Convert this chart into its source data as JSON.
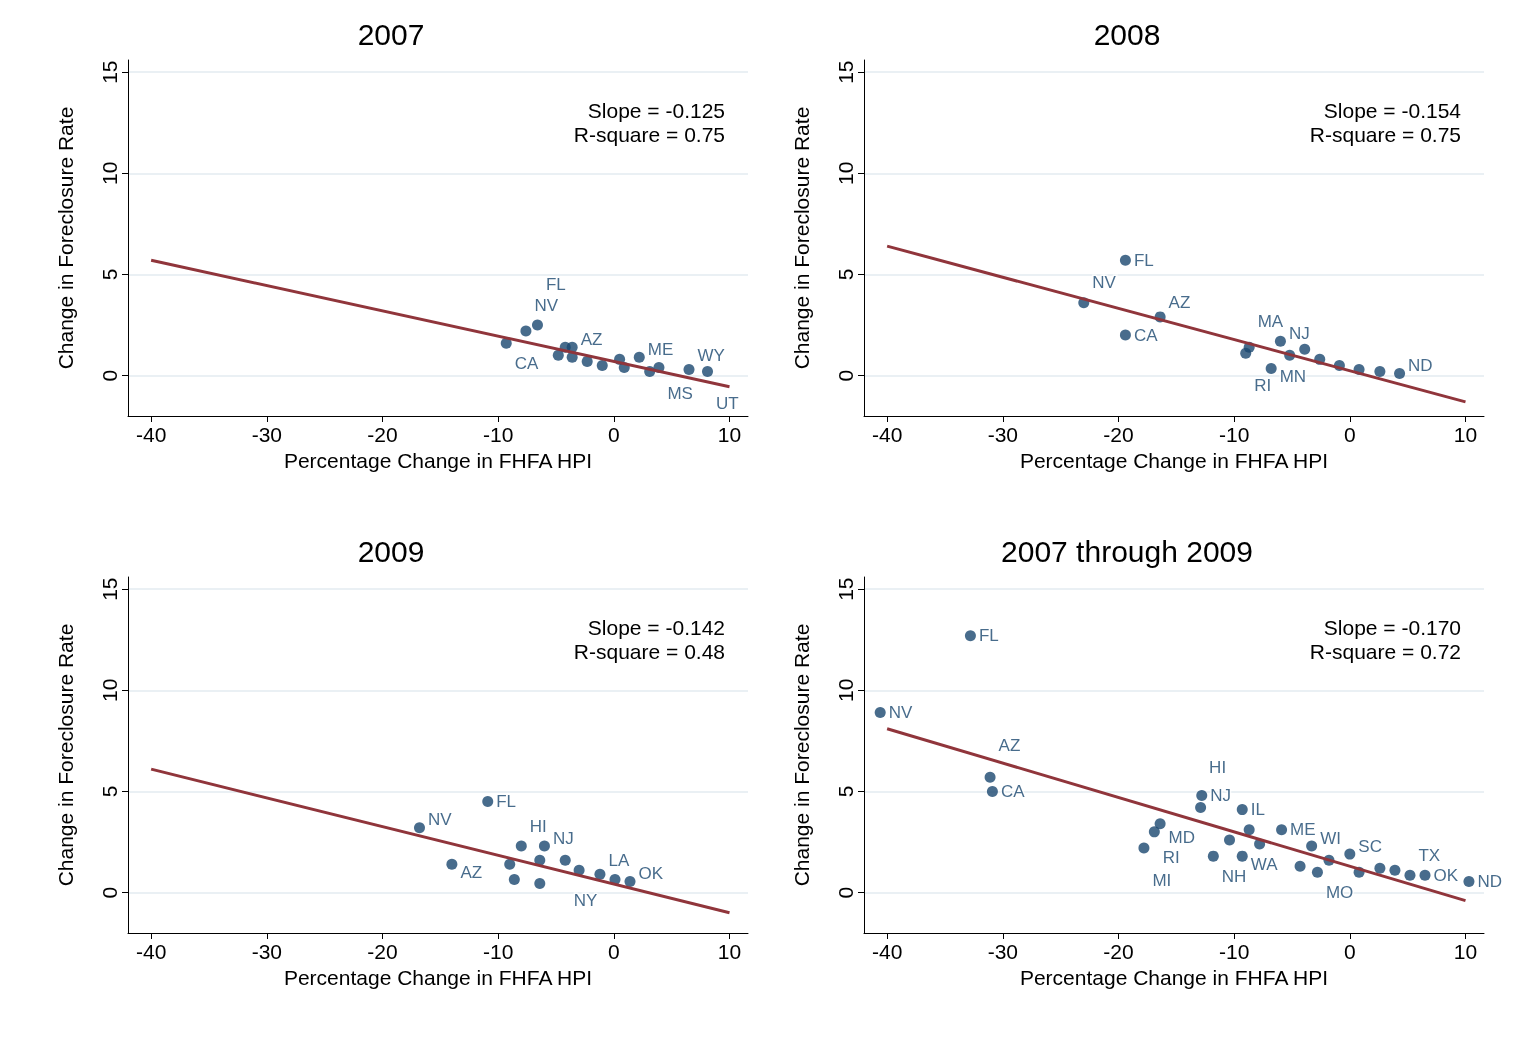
{
  "chart_data": [
    {
      "type": "scatter",
      "title": "2007",
      "xlabel": "Percentage Change in FHFA HPI",
      "ylabel": "Change in Foreclosure Rate",
      "annotations": [
        "Slope = -0.125",
        "R-square = 0.75"
      ],
      "xlim": [
        -42,
        11.6
      ],
      "ylim": [
        -2,
        15.6
      ],
      "xticks": [
        -40,
        -30,
        -20,
        -10,
        0,
        10
      ],
      "yticks": [
        0,
        5,
        10,
        15
      ],
      "grid": "y",
      "series": [
        {
          "marker": "circle",
          "color": "#1a476f",
          "x": [
            -9.3,
            -7.6,
            -6.6,
            -3.6,
            -4.2,
            -4.8,
            -3.6,
            -2.3,
            -1.0,
            0.5,
            2.2,
            0.9,
            3.1,
            3.9,
            6.5,
            8.1
          ],
          "values": [
            1.6,
            2.2,
            2.5,
            1.4,
            1.4,
            1.0,
            0.9,
            0.7,
            0.5,
            0.8,
            0.9,
            0.4,
            0.2,
            0.4,
            0.3,
            0.2
          ],
          "value_labels": [
            "CA",
            "NV",
            "FL",
            "AZ",
            null,
            null,
            null,
            null,
            null,
            null,
            "ME",
            null,
            null,
            "MS",
            "WY",
            "UT"
          ]
        },
        {
          "type": "line",
          "marker": "none",
          "color": "#90353b",
          "x": [
            -40,
            10
          ],
          "values": [
            5.7,
            -0.55
          ]
        }
      ]
    },
    {
      "type": "scatter",
      "title": "2008",
      "xlabel": "Percentage Change in FHFA HPI",
      "ylabel": "Change in Foreclosure Rate",
      "annotations": [
        "Slope = -0.154",
        "R-square = 0.75"
      ],
      "xlim": [
        -42,
        11.6
      ],
      "ylim": [
        -2,
        15.6
      ],
      "xticks": [
        -40,
        -30,
        -20,
        -10,
        0,
        10
      ],
      "yticks": [
        0,
        5,
        10,
        15
      ],
      "grid": "y",
      "series": [
        {
          "marker": "circle",
          "color": "#1a476f",
          "x": [
            -19.4,
            -23.0,
            -16.4,
            -19.4,
            -8.7,
            -9.0,
            -6.0,
            -6.8,
            -5.2,
            -3.9,
            -2.6,
            -0.9,
            0.8,
            2.6,
            4.3
          ],
          "values": [
            5.7,
            3.6,
            2.9,
            2.0,
            1.4,
            1.1,
            1.7,
            0.35,
            1.0,
            1.3,
            0.8,
            0.5,
            0.3,
            0.2,
            0.1
          ],
          "value_labels": [
            "FL",
            "NV",
            "AZ",
            "CA",
            "MA",
            "RI",
            "NJ",
            "MN",
            null,
            null,
            null,
            null,
            null,
            null,
            "ND"
          ]
        },
        {
          "type": "line",
          "marker": "none",
          "color": "#90353b",
          "x": [
            -40,
            10
          ],
          "values": [
            6.4,
            -1.3
          ]
        }
      ]
    },
    {
      "type": "scatter",
      "title": "2009",
      "xlabel": "Percentage Change in FHFA HPI",
      "ylabel": "Change in Foreclosure Rate",
      "annotations": [
        "Slope = -0.142",
        "R-square = 0.48"
      ],
      "xlim": [
        -42,
        11.6
      ],
      "ylim": [
        -2,
        15.6
      ],
      "xticks": [
        -40,
        -30,
        -20,
        -10,
        0,
        10
      ],
      "yticks": [
        0,
        5,
        10,
        15
      ],
      "grid": "y",
      "series": [
        {
          "marker": "circle",
          "color": "#1a476f",
          "x": [
            -10.9,
            -16.8,
            -14.0,
            -8.0,
            -6.0,
            -9.0,
            -8.6,
            -6.4,
            -4.2,
            -3.0,
            -1.2,
            0.1,
            1.4,
            -6.4
          ],
          "values": [
            4.5,
            3.2,
            1.4,
            2.3,
            2.3,
            1.4,
            0.65,
            1.6,
            1.6,
            1.1,
            0.9,
            0.65,
            0.55,
            0.45
          ],
          "value_labels": [
            "FL",
            "NV",
            "AZ",
            "HI",
            "NJ",
            null,
            null,
            null,
            "NY",
            null,
            "LA",
            null,
            "OK",
            null
          ]
        },
        {
          "type": "line",
          "marker": "none",
          "color": "#90353b",
          "x": [
            -40,
            10
          ],
          "values": [
            6.1,
            -1.0
          ]
        }
      ]
    },
    {
      "type": "scatter",
      "title": "2007 through 2009",
      "xlabel": "Percentage Change in FHFA HPI",
      "ylabel": "Change in Foreclosure Rate",
      "annotations": [
        "Slope = -0.170",
        "R-square = 0.72"
      ],
      "xlim": [
        -42,
        11.6
      ],
      "ylim": [
        -2,
        15.6
      ],
      "xticks": [
        -40,
        -30,
        -20,
        -10,
        0,
        10
      ],
      "yticks": [
        0,
        5,
        10,
        15
      ],
      "grid": "y",
      "series": [
        {
          "marker": "circle",
          "color": "#1a476f",
          "x": [
            -32.8,
            -40.6,
            -31.1,
            -30.9,
            -12.8,
            -12.9,
            -9.3,
            -16.4,
            -16.9,
            -17.8,
            -11.8,
            -9.3,
            -5.9,
            -3.3,
            0,
            6.5,
            10.3,
            -2.8,
            5.2,
            -10.4,
            -8.7,
            -7.8,
            -4.3,
            -1.8,
            0.8,
            2.6,
            3.9
          ],
          "values": [
            12.7,
            8.9,
            5.7,
            5.0,
            4.8,
            4.2,
            4.1,
            3.4,
            3.0,
            2.2,
            1.8,
            1.8,
            3.1,
            2.3,
            1.9,
            0.85,
            0.55,
            1.0,
            0.85,
            2.6,
            3.1,
            2.4,
            1.3,
            1.6,
            1.0,
            1.2,
            1.1
          ],
          "value_labels": [
            "FL",
            "NV",
            "AZ",
            "CA",
            "NJ",
            "HI",
            "IL",
            "MD",
            "RI",
            "MI",
            "NH",
            "WA",
            "ME",
            "WI",
            "SC",
            "OK",
            "ND",
            "MO",
            "TX",
            null,
            null,
            null,
            null,
            null,
            null,
            null,
            null
          ]
        },
        {
          "type": "line",
          "marker": "none",
          "color": "#90353b",
          "x": [
            -40,
            10
          ],
          "values": [
            8.1,
            -0.4
          ]
        }
      ]
    }
  ]
}
